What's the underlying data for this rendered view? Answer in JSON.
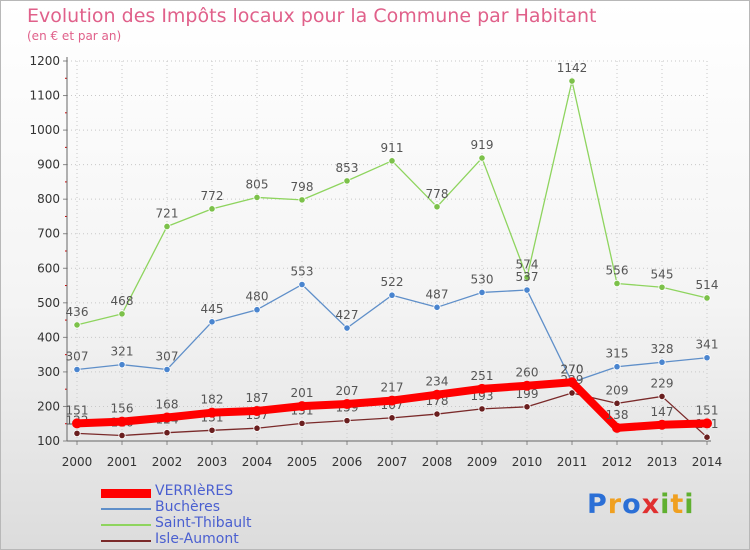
{
  "title": "Evolution des Impôts locaux pour la Commune par Habitant",
  "subtitle": "(en € et par an)",
  "logo": {
    "letters": [
      {
        "ch": "P",
        "color": "#2b6fd6"
      },
      {
        "ch": "r",
        "color": "#f0a020"
      },
      {
        "ch": "o",
        "color": "#2b6fd6"
      },
      {
        "ch": "x",
        "color": "#e03030"
      },
      {
        "ch": "i",
        "color": "#60b030"
      },
      {
        "ch": "t",
        "color": "#f0a020"
      },
      {
        "ch": "i",
        "color": "#60b030"
      }
    ]
  },
  "chart_data": {
    "type": "line",
    "x": [
      "2000",
      "2001",
      "2002",
      "2003",
      "2004",
      "2005",
      "2006",
      "2007",
      "2008",
      "2009",
      "2010",
      "2011",
      "2012",
      "2013",
      "2014"
    ],
    "ylim": [
      100,
      1200
    ],
    "yticks": [
      "100",
      "200",
      "300",
      "400",
      "500",
      "600",
      "700",
      "800",
      "900",
      "1000",
      "1100",
      "1200"
    ],
    "grid": "dotted",
    "legend": "bottom-left",
    "series": [
      {
        "name": "Saint-Thibault",
        "color": "#8ed45e",
        "marker": "#7cc14a",
        "values": [
          436,
          468,
          721,
          772,
          805,
          798,
          853,
          911,
          778,
          919,
          574,
          1142,
          556,
          545,
          514
        ],
        "labels": [
          "436",
          "468",
          "721",
          "772",
          "805",
          "798",
          "853",
          "911",
          "778",
          "919",
          "574",
          "1142",
          "556",
          "545",
          "514"
        ]
      },
      {
        "name": "Buchères",
        "color": "#5f8fc9",
        "marker": "#4a85cf",
        "values": [
          307,
          321,
          307,
          445,
          480,
          553,
          427,
          522,
          487,
          530,
          537,
          270,
          315,
          328,
          341
        ],
        "labels": [
          "307",
          "321",
          "307",
          "445",
          "480",
          "553",
          "427",
          "522",
          "487",
          "530",
          "537",
          "270",
          "315",
          "328",
          "341"
        ]
      },
      {
        "name": "Isle-Aumont",
        "color": "#7a2a2a",
        "marker": "#6a1f1f",
        "values": [
          122,
          116,
          124,
          131,
          137,
          151,
          159,
          167,
          178,
          193,
          199,
          239,
          209,
          229,
          111
        ],
        "labels": [
          "122",
          "116",
          "124",
          "131",
          "137",
          "151",
          "159",
          "167",
          "178",
          "193",
          "199",
          "239",
          "209",
          "229",
          "111"
        ]
      },
      {
        "name": "VERRIèRES",
        "color": "#ff0000",
        "marker": "#ff0000",
        "values": [
          151,
          156,
          168,
          182,
          187,
          201,
          207,
          217,
          234,
          251,
          260,
          270,
          138,
          147,
          151
        ],
        "labels": [
          "151",
          "156",
          "168",
          "182",
          "187",
          "201",
          "207",
          "217",
          "234",
          "251",
          "260",
          "270",
          "138",
          "147",
          "151"
        ]
      }
    ],
    "legend_order": [
      "VERRIèRES",
      "Buchères",
      "Saint-Thibault",
      "Isle-Aumont"
    ]
  }
}
